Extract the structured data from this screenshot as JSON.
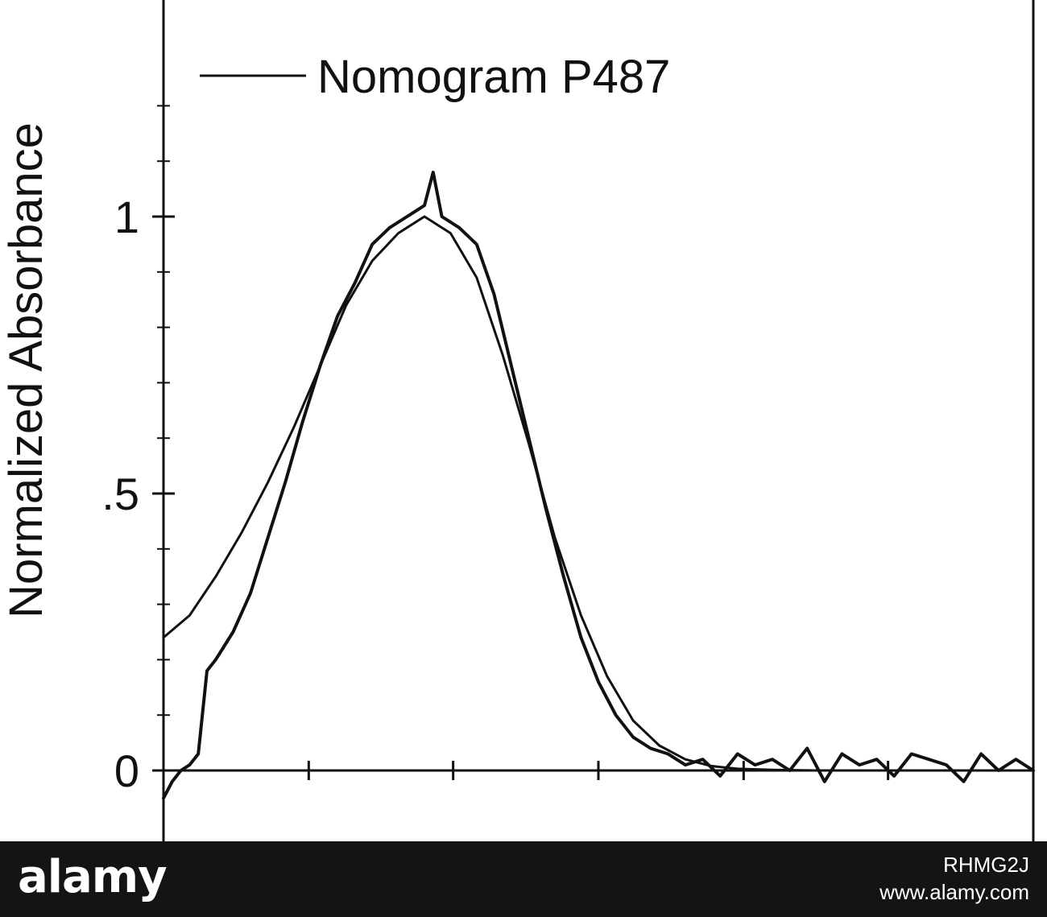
{
  "chart_data": {
    "type": "line",
    "ylabel": "Normalized Absorbance",
    "ylim": [
      -0.07,
      1.28
    ],
    "xlim": [
      0,
      100
    ],
    "y_ticks": [
      {
        "value": 0,
        "label": "0"
      },
      {
        "value": 0.5,
        "label": ".5"
      },
      {
        "value": 1,
        "label": "1"
      }
    ],
    "y_minor_step": 0.1,
    "x_tick_positions": [
      0,
      16.7,
      33.3,
      50,
      66.7,
      83.3
    ],
    "legend": {
      "label": "Nomogram P487",
      "placement": "top-left"
    },
    "grid": false,
    "series": [
      {
        "style": "smooth",
        "x": [
          0,
          3,
          6,
          9,
          12,
          15,
          18,
          21,
          24,
          27,
          30,
          33,
          36,
          39,
          42,
          45,
          48,
          51,
          54,
          57,
          60,
          63,
          66,
          70,
          75,
          80,
          85,
          90,
          95,
          100
        ],
        "values": [
          0.24,
          0.28,
          0.35,
          0.43,
          0.52,
          0.62,
          0.73,
          0.84,
          0.92,
          0.97,
          1.0,
          0.97,
          0.89,
          0.75,
          0.59,
          0.42,
          0.28,
          0.17,
          0.09,
          0.045,
          0.02,
          0.008,
          0.003,
          0.001,
          0,
          0,
          0,
          0,
          0,
          0
        ]
      },
      {
        "style": "noisy",
        "x": [
          0,
          1,
          2,
          3,
          4,
          5,
          6,
          8,
          10,
          12,
          14,
          16,
          18,
          20,
          22,
          24,
          26,
          28,
          30,
          31,
          32,
          34,
          36,
          38,
          40,
          42,
          44,
          46,
          48,
          50,
          52,
          54,
          56,
          58,
          60,
          62,
          64,
          66,
          68,
          70,
          72,
          74,
          76,
          78,
          80,
          82,
          84,
          86,
          88,
          90,
          92,
          94,
          96,
          98,
          100
        ],
        "values": [
          -0.05,
          -0.02,
          0.0,
          0.01,
          0.03,
          0.18,
          0.2,
          0.25,
          0.32,
          0.42,
          0.52,
          0.63,
          0.73,
          0.82,
          0.88,
          0.95,
          0.98,
          1.0,
          1.02,
          1.08,
          1.0,
          0.98,
          0.95,
          0.86,
          0.73,
          0.6,
          0.47,
          0.35,
          0.24,
          0.16,
          0.1,
          0.06,
          0.04,
          0.03,
          0.01,
          0.02,
          -0.01,
          0.03,
          0.01,
          0.02,
          0.0,
          0.04,
          -0.02,
          0.03,
          0.01,
          0.02,
          -0.01,
          0.03,
          0.02,
          0.01,
          -0.02,
          0.03,
          0.0,
          0.02,
          0.0
        ]
      }
    ]
  },
  "watermark": {
    "logo_text": "alamy",
    "image_id": "RHMG2J",
    "url": "www.alamy.com"
  }
}
